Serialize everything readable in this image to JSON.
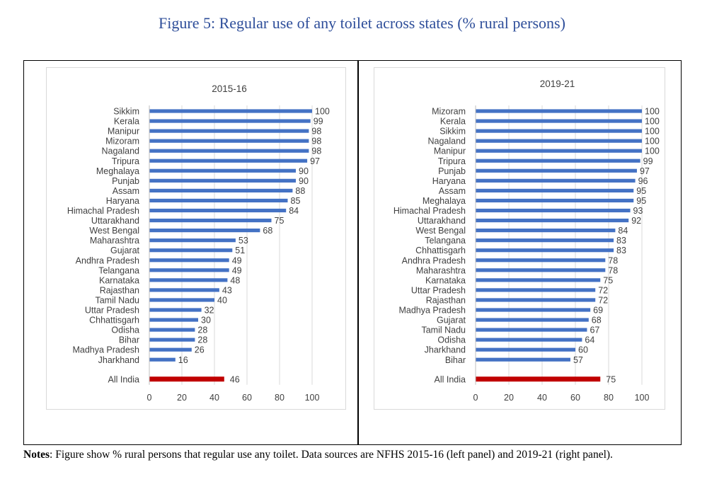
{
  "figure": {
    "title": "Figure 5: Regular use of any toilet across states (% rural persons)"
  },
  "notes": {
    "label": "Notes",
    "text": ": Figure show % rural persons that regular use any toilet. Data sources are NFHS 2015-16 (left panel) and 2019-21 (right panel)."
  },
  "colors": {
    "bar": "#4472c4",
    "highlight": "#c00000",
    "title": "#2e4e9a"
  },
  "chart_data": [
    {
      "type": "bar",
      "orientation": "horizontal",
      "title": "2015-16",
      "xlim": [
        0,
        100
      ],
      "xticks": [
        "0",
        "20",
        "40",
        "60",
        "80",
        "100"
      ],
      "categories": [
        "Sikkim",
        "Kerala",
        "Manipur",
        "Mizoram",
        "Nagaland",
        "Tripura",
        "Meghalaya",
        "Punjab",
        "Assam",
        "Haryana",
        "Himachal Pradesh",
        "Uttarakhand",
        "West Bengal",
        "Maharashtra",
        "Gujarat",
        "Andhra Pradesh",
        "Telangana",
        "Karnataka",
        "Rajasthan",
        "Tamil Nadu",
        "Uttar Pradesh",
        "Chhattisgarh",
        "Odisha",
        "Bihar",
        "Madhya Pradesh",
        "Jharkhand"
      ],
      "values": [
        100,
        99,
        98,
        98,
        98,
        97,
        90,
        90,
        88,
        85,
        84,
        75,
        68,
        53,
        51,
        49,
        49,
        48,
        43,
        40,
        32,
        30,
        28,
        28,
        26,
        16
      ],
      "summary": {
        "label": "All India",
        "value": 46
      }
    },
    {
      "type": "bar",
      "orientation": "horizontal",
      "title": "2019-21",
      "xlim": [
        0,
        100
      ],
      "xticks": [
        "0",
        "20",
        "40",
        "60",
        "80",
        "100"
      ],
      "categories": [
        "Mizoram",
        "Kerala",
        "Sikkim",
        "Nagaland",
        "Manipur",
        "Tripura",
        "Punjab",
        "Haryana",
        "Assam",
        "Meghalaya",
        "Himachal Pradesh",
        "Uttarakhand",
        "West Bengal",
        "Telangana",
        "Chhattisgarh",
        "Andhra Pradesh",
        "Maharashtra",
        "Karnataka",
        "Uttar Pradesh",
        "Rajasthan",
        "Madhya Pradesh",
        "Gujarat",
        "Tamil Nadu",
        "Odisha",
        "Jharkhand",
        "Bihar"
      ],
      "values": [
        100,
        100,
        100,
        100,
        100,
        99,
        97,
        96,
        95,
        95,
        93,
        92,
        84,
        83,
        83,
        78,
        78,
        75,
        72,
        72,
        69,
        68,
        67,
        64,
        60,
        57
      ],
      "summary": {
        "label": "All India",
        "value": 75
      }
    }
  ]
}
